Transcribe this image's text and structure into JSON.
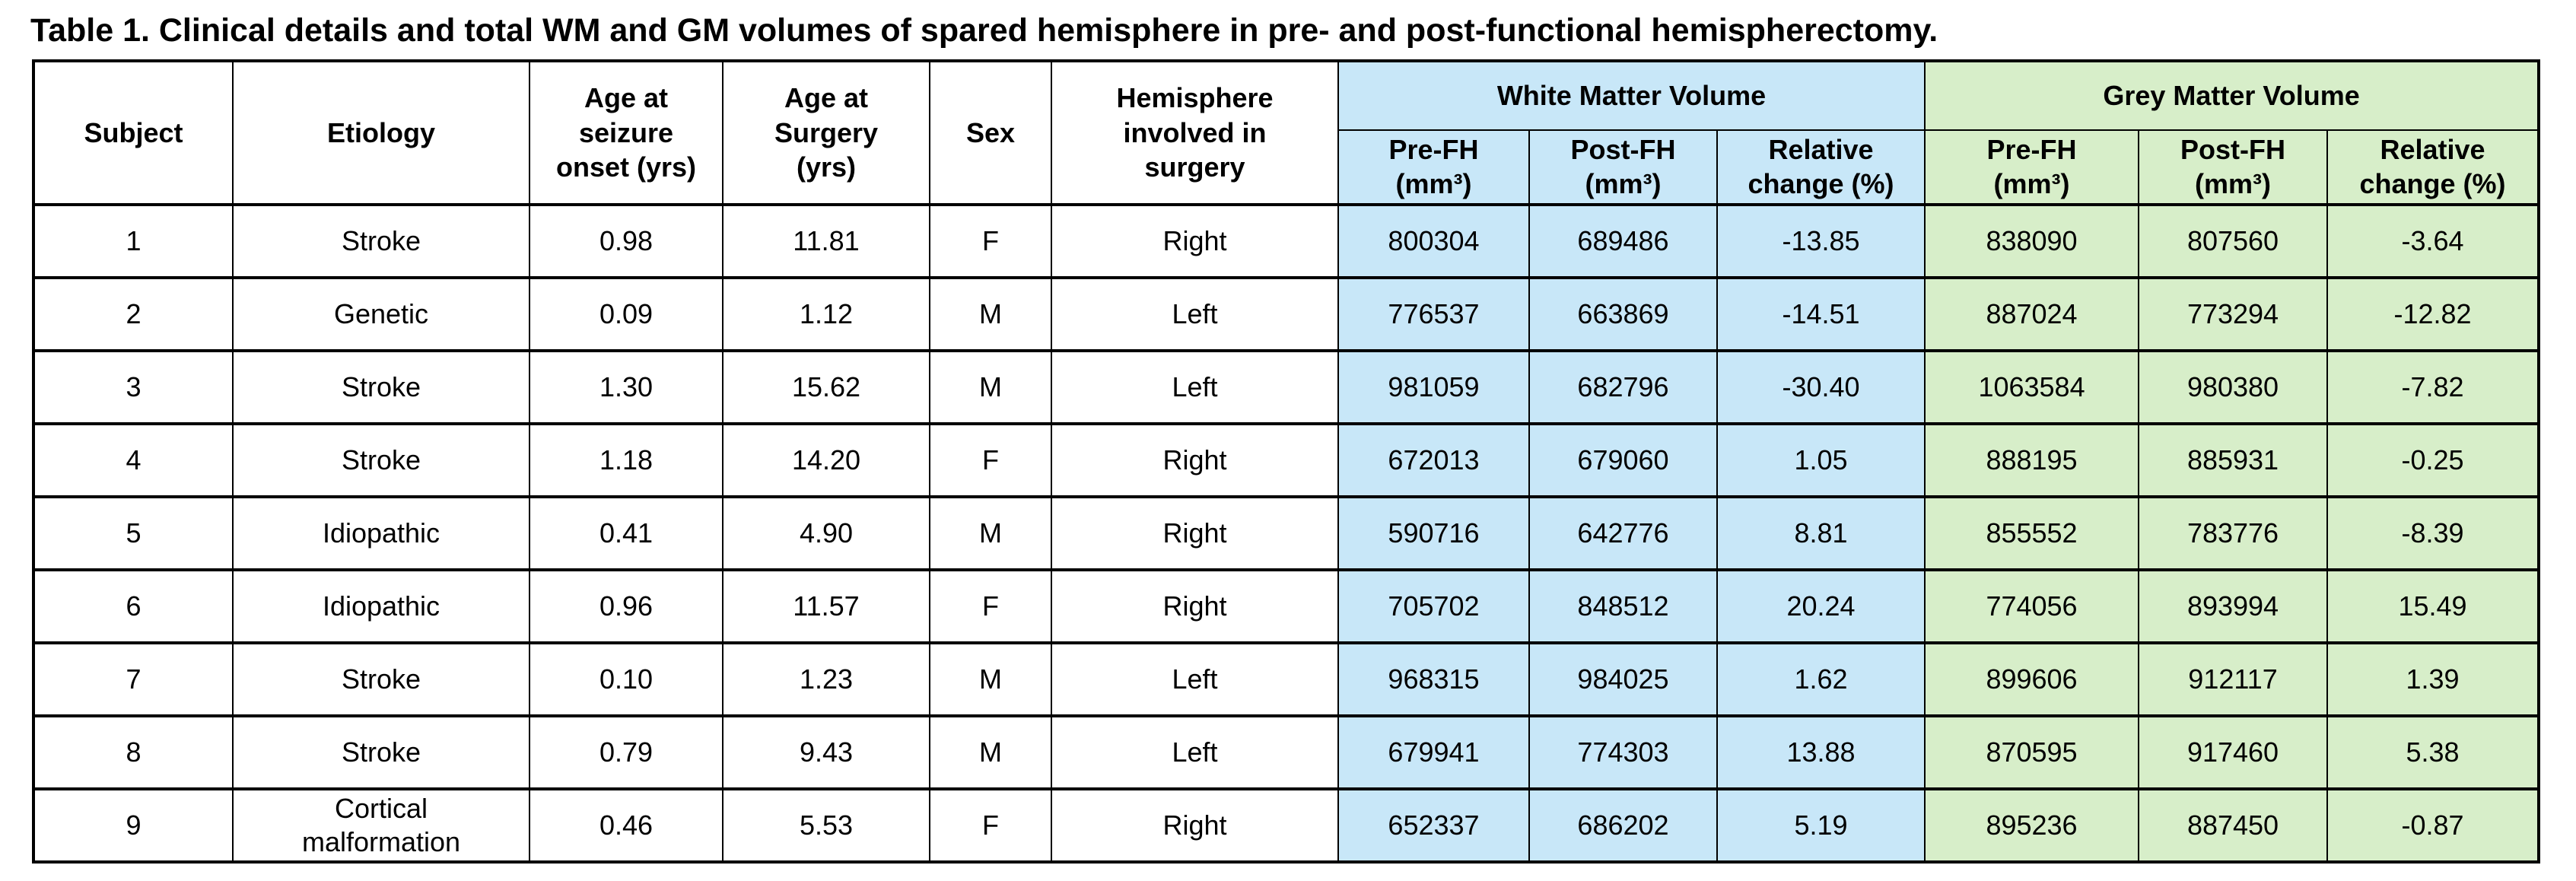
{
  "title": "Table 1. Clinical details and total WM and GM volumes of spared hemisphere in pre- and post-functional hemispherectomy.",
  "colors": {
    "white_matter_bg": "#c8e7f8",
    "grey_matter_bg": "#d7eec9",
    "border": "#000000",
    "text": "#000000",
    "page_bg": "#ffffff"
  },
  "table": {
    "left_columns": [
      "Subject",
      "Etiology",
      "Age at\nseizure\nonset (yrs)",
      "Age at\nSurgery\n(yrs)",
      "Sex",
      "Hemisphere\ninvolved in\nsurgery"
    ],
    "groups": [
      {
        "label": "White Matter Volume",
        "subcols": [
          "Pre-FH\n(mm³)",
          "Post-FH\n(mm³)",
          "Relative\nchange (%)"
        ]
      },
      {
        "label": "Grey Matter Volume",
        "subcols": [
          "Pre-FH\n(mm³)",
          "Post-FH\n(mm³)",
          "Relative\nchange (%)"
        ]
      }
    ],
    "rows": [
      [
        "1",
        "Stroke",
        "0.98",
        "11.81",
        "F",
        "Right",
        "800304",
        "689486",
        "-13.85",
        "838090",
        "807560",
        "-3.64"
      ],
      [
        "2",
        "Genetic",
        "0.09",
        "1.12",
        "M",
        "Left",
        "776537",
        "663869",
        "-14.51",
        "887024",
        "773294",
        "-12.82"
      ],
      [
        "3",
        "Stroke",
        "1.30",
        "15.62",
        "M",
        "Left",
        "981059",
        "682796",
        "-30.40",
        "1063584",
        "980380",
        "-7.82"
      ],
      [
        "4",
        "Stroke",
        "1.18",
        "14.20",
        "F",
        "Right",
        "672013",
        "679060",
        "1.05",
        "888195",
        "885931",
        "-0.25"
      ],
      [
        "5",
        "Idiopathic",
        "0.41",
        "4.90",
        "M",
        "Right",
        "590716",
        "642776",
        "8.81",
        "855552",
        "783776",
        "-8.39"
      ],
      [
        "6",
        "Idiopathic",
        "0.96",
        "11.57",
        "F",
        "Right",
        "705702",
        "848512",
        "20.24",
        "774056",
        "893994",
        "15.49"
      ],
      [
        "7",
        "Stroke",
        "0.10",
        "1.23",
        "M",
        "Left",
        "968315",
        "984025",
        "1.62",
        "899606",
        "912117",
        "1.39"
      ],
      [
        "8",
        "Stroke",
        "0.79",
        "9.43",
        "M",
        "Left",
        "679941",
        "774303",
        "13.88",
        "870595",
        "917460",
        "5.38"
      ],
      [
        "9",
        "Cortical\nmalformation",
        "0.46",
        "5.53",
        "F",
        "Right",
        "652337",
        "686202",
        "5.19",
        "895236",
        "887450",
        "-0.87"
      ]
    ]
  },
  "chart_data": {
    "type": "table",
    "title": "Table 1. Clinical details and total WM and GM volumes of spared hemisphere in pre- and post-functional hemispherectomy.",
    "columns": [
      "Subject",
      "Etiology",
      "Age at seizure onset (yrs)",
      "Age at Surgery (yrs)",
      "Sex",
      "Hemisphere involved in surgery",
      "WM Pre-FH (mm³)",
      "WM Post-FH (mm³)",
      "WM Relative change (%)",
      "GM Pre-FH (mm³)",
      "GM Post-FH (mm³)",
      "GM Relative change (%)"
    ],
    "rows": [
      [
        1,
        "Stroke",
        0.98,
        11.81,
        "F",
        "Right",
        800304,
        689486,
        -13.85,
        838090,
        807560,
        -3.64
      ],
      [
        2,
        "Genetic",
        0.09,
        1.12,
        "M",
        "Left",
        776537,
        663869,
        -14.51,
        887024,
        773294,
        -12.82
      ],
      [
        3,
        "Stroke",
        1.3,
        15.62,
        "M",
        "Left",
        981059,
        682796,
        -30.4,
        1063584,
        980380,
        -7.82
      ],
      [
        4,
        "Stroke",
        1.18,
        14.2,
        "F",
        "Right",
        672013,
        679060,
        1.05,
        888195,
        885931,
        -0.25
      ],
      [
        5,
        "Idiopathic",
        0.41,
        4.9,
        "M",
        "Right",
        590716,
        642776,
        8.81,
        855552,
        783776,
        -8.39
      ],
      [
        6,
        "Idiopathic",
        0.96,
        11.57,
        "F",
        "Right",
        705702,
        848512,
        20.24,
        774056,
        893994,
        15.49
      ],
      [
        7,
        "Stroke",
        0.1,
        1.23,
        "M",
        "Left",
        968315,
        984025,
        1.62,
        899606,
        912117,
        1.39
      ],
      [
        8,
        "Stroke",
        0.79,
        9.43,
        "M",
        "Left",
        679941,
        774303,
        13.88,
        870595,
        917460,
        5.38
      ],
      [
        9,
        "Cortical malformation",
        0.46,
        5.53,
        "F",
        "Right",
        652337,
        686202,
        5.19,
        895236,
        887450,
        -0.87
      ]
    ]
  }
}
